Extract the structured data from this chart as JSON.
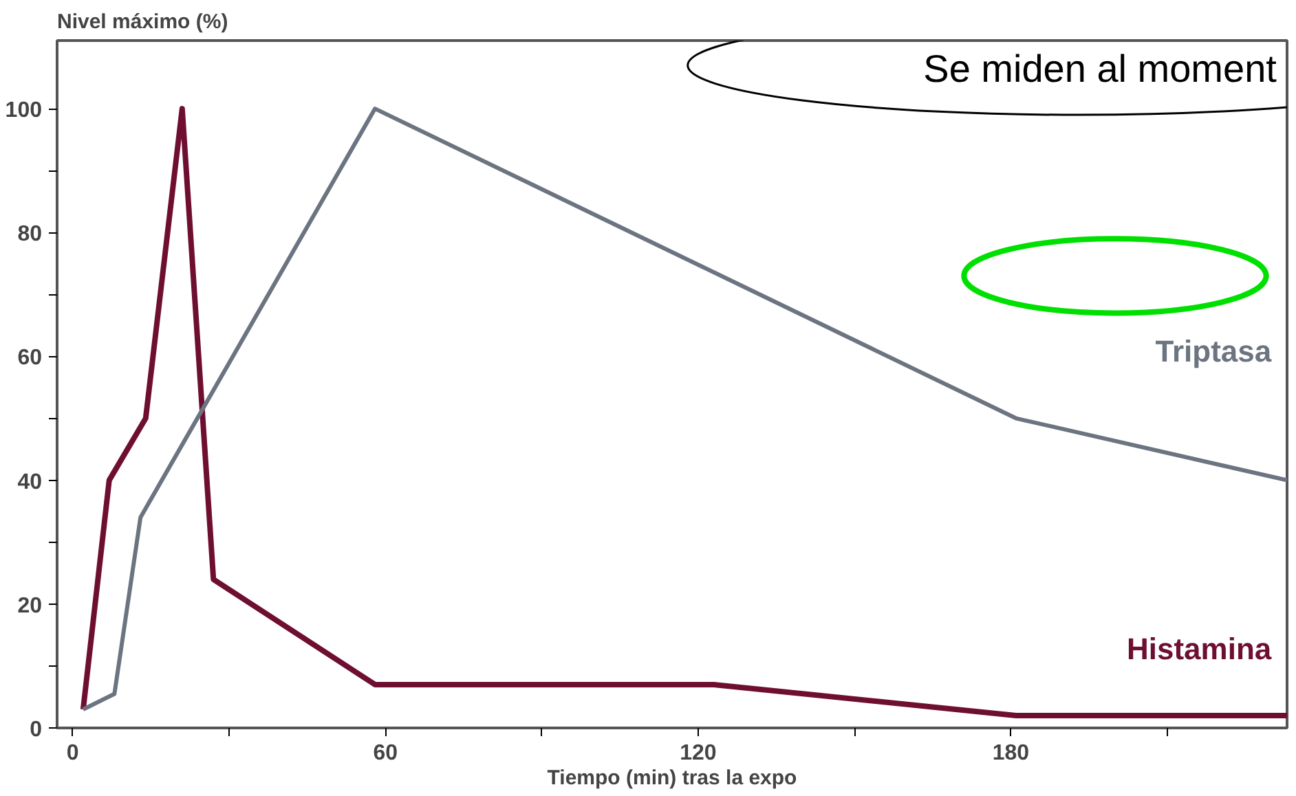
{
  "chart_data": {
    "type": "line",
    "title": "Nivel máximo (%)",
    "xlabel": "Tiempo (min) tras la expo",
    "annotations": [
      "Se miden al moment"
    ],
    "series": [
      {
        "name": "Histamina",
        "color": "#6e0f32",
        "x": [
          2,
          7,
          14,
          21,
          27,
          58,
          123,
          181,
          233
        ],
        "values": [
          3,
          40,
          50,
          100,
          24,
          7,
          7,
          2,
          2
        ]
      },
      {
        "name": "Triptasa",
        "color": "#6b7480",
        "x": [
          2,
          8,
          13,
          58,
          181,
          233
        ],
        "values": [
          3,
          5.5,
          34,
          100,
          50,
          40
        ]
      }
    ],
    "xlim": [
      -3,
      233
    ],
    "ylim": [
      0,
      111
    ],
    "xticks": [
      0,
      {
        "value": 30,
        "label": null
      },
      60,
      {
        "value": 90,
        "label": null
      },
      120,
      {
        "value": 150,
        "label": null
      },
      180,
      {
        "value": 210,
        "label": null
      }
    ],
    "yticks": [
      0,
      {
        "value": 10,
        "label": null
      },
      20,
      {
        "value": 30,
        "label": null
      },
      40,
      {
        "value": 50,
        "label": null
      },
      60,
      {
        "value": 70,
        "label": null
      },
      80,
      {
        "value": 90,
        "label": null
      },
      100
    ],
    "grid": false,
    "legend": false,
    "marker": "none",
    "line_style": "solid"
  }
}
